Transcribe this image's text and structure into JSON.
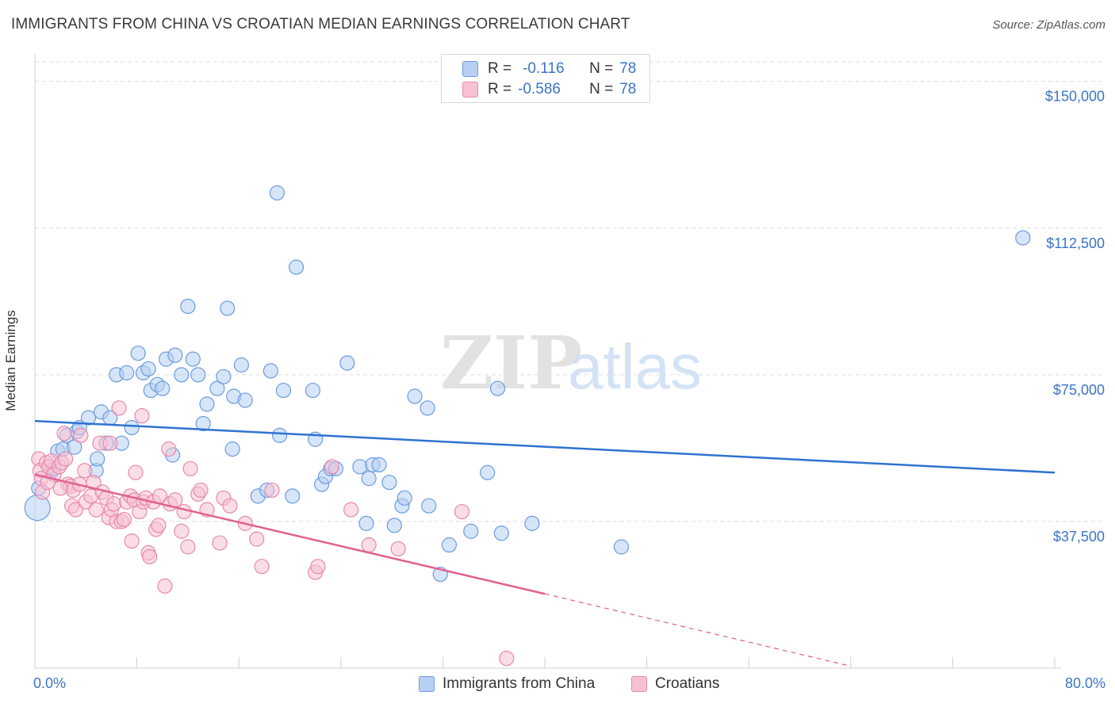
{
  "title": "IMMIGRANTS FROM CHINA VS CROATIAN MEDIAN EARNINGS CORRELATION CHART",
  "source": "Source: ZipAtlas.com",
  "watermark": "ZIPatlas",
  "legend": [
    {
      "r_label": "R =",
      "r_value": "-0.116",
      "n_label": "N =",
      "n_value": "78"
    },
    {
      "r_label": "R =",
      "r_value": "-0.586",
      "n_label": "N =",
      "n_value": "78"
    }
  ],
  "colors": {
    "china_fill": "#b7cff2",
    "china_stroke": "#6a9be0",
    "china_line": "#2f72d0",
    "croatian_fill": "#f7c1d3",
    "croatian_stroke": "#e889a9",
    "croatian_line": "#e0628f",
    "axis_text": "#3b74c8",
    "grid": "#dddddd"
  },
  "chart_data": {
    "type": "scatter",
    "title": "IMMIGRANTS FROM CHINA VS CROATIAN MEDIAN EARNINGS CORRELATION CHART",
    "xlabel": "",
    "ylabel": "Median Earnings",
    "xlim": [
      0,
      80
    ],
    "ylim": [
      0,
      155000
    ],
    "x_tick_labels": [
      "0.0%",
      "80.0%"
    ],
    "y_ticks": [
      37500,
      75000,
      112500,
      150000
    ],
    "y_tick_labels": [
      "$37,500",
      "$75,000",
      "$112,500",
      "$150,000"
    ],
    "grid": true,
    "series": [
      {
        "name": "Immigrants from China",
        "r": -0.116,
        "n": 78,
        "trend": {
          "x": [
            0,
            80
          ],
          "y": [
            63200,
            50000
          ],
          "dashed_from": null
        },
        "points": [
          [
            0.2,
            41000
          ],
          [
            0.3,
            46000
          ],
          [
            1.2,
            50000
          ],
          [
            1.5,
            51000
          ],
          [
            1.8,
            55500
          ],
          [
            2.2,
            56000
          ],
          [
            2.5,
            59500
          ],
          [
            3.1,
            56500
          ],
          [
            3.3,
            60500
          ],
          [
            3.5,
            61500
          ],
          [
            4.2,
            64000
          ],
          [
            4.8,
            50500
          ],
          [
            4.9,
            53500
          ],
          [
            5.2,
            65500
          ],
          [
            5.6,
            57500
          ],
          [
            5.9,
            64000
          ],
          [
            6.8,
            57500
          ],
          [
            7.6,
            61500
          ],
          [
            8.1,
            80500
          ],
          [
            6.4,
            75000
          ],
          [
            7.2,
            75500
          ],
          [
            8.5,
            75500
          ],
          [
            8.9,
            76500
          ],
          [
            9.1,
            71000
          ],
          [
            9.6,
            72500
          ],
          [
            10.0,
            71500
          ],
          [
            10.3,
            79000
          ],
          [
            11.0,
            80000
          ],
          [
            10.8,
            54500
          ],
          [
            11.5,
            75000
          ],
          [
            12.0,
            92500
          ],
          [
            12.4,
            79000
          ],
          [
            12.8,
            75000
          ],
          [
            13.2,
            62500
          ],
          [
            13.5,
            67500
          ],
          [
            14.3,
            71500
          ],
          [
            14.8,
            74500
          ],
          [
            15.1,
            92000
          ],
          [
            15.5,
            56000
          ],
          [
            15.6,
            69500
          ],
          [
            16.2,
            77500
          ],
          [
            16.5,
            68500
          ],
          [
            17.5,
            44000
          ],
          [
            18.2,
            45500
          ],
          [
            18.5,
            76000
          ],
          [
            19.0,
            121500
          ],
          [
            19.2,
            59500
          ],
          [
            19.5,
            71000
          ],
          [
            20.2,
            44000
          ],
          [
            20.5,
            102500
          ],
          [
            21.8,
            71000
          ],
          [
            22.0,
            58500
          ],
          [
            22.5,
            47000
          ],
          [
            22.8,
            49000
          ],
          [
            23.2,
            51000
          ],
          [
            23.6,
            51000
          ],
          [
            24.5,
            78000
          ],
          [
            25.5,
            51500
          ],
          [
            26.0,
            37000
          ],
          [
            26.2,
            48500
          ],
          [
            26.5,
            52000
          ],
          [
            27.0,
            52000
          ],
          [
            27.8,
            47500
          ],
          [
            28.2,
            36500
          ],
          [
            28.8,
            41500
          ],
          [
            29.0,
            43500
          ],
          [
            29.8,
            69500
          ],
          [
            30.8,
            66500
          ],
          [
            30.9,
            41500
          ],
          [
            31.8,
            24000
          ],
          [
            32.5,
            31500
          ],
          [
            34.2,
            35000
          ],
          [
            35.5,
            50000
          ],
          [
            36.3,
            71500
          ],
          [
            36.6,
            34500
          ],
          [
            39.0,
            37000
          ],
          [
            46.0,
            31000
          ],
          [
            77.5,
            110000
          ]
        ]
      },
      {
        "name": "Croatians",
        "r": -0.586,
        "n": 78,
        "trend": {
          "x": [
            0,
            40
          ],
          "y": [
            49500,
            19000
          ],
          "dashed_to": [
            64,
            500
          ]
        },
        "points": [
          [
            0.3,
            53500
          ],
          [
            0.4,
            50500
          ],
          [
            0.5,
            48500
          ],
          [
            0.6,
            45000
          ],
          [
            0.9,
            52500
          ],
          [
            1.1,
            51500
          ],
          [
            1.3,
            53000
          ],
          [
            1.5,
            49500
          ],
          [
            1.9,
            51500
          ],
          [
            2.1,
            52500
          ],
          [
            2.3,
            60000
          ],
          [
            2.4,
            53500
          ],
          [
            2.6,
            47000
          ],
          [
            2.8,
            46500
          ],
          [
            2.9,
            41500
          ],
          [
            3.0,
            45500
          ],
          [
            3.2,
            40500
          ],
          [
            3.5,
            47000
          ],
          [
            3.6,
            59500
          ],
          [
            3.9,
            50500
          ],
          [
            4.0,
            42500
          ],
          [
            4.4,
            44000
          ],
          [
            4.6,
            47500
          ],
          [
            4.8,
            40500
          ],
          [
            5.1,
            57500
          ],
          [
            5.3,
            45000
          ],
          [
            5.6,
            43500
          ],
          [
            5.8,
            38500
          ],
          [
            5.9,
            57500
          ],
          [
            6.0,
            40500
          ],
          [
            6.2,
            42000
          ],
          [
            6.4,
            37500
          ],
          [
            6.6,
            66500
          ],
          [
            6.8,
            37500
          ],
          [
            7.0,
            38000
          ],
          [
            7.2,
            42500
          ],
          [
            7.5,
            44000
          ],
          [
            7.6,
            32500
          ],
          [
            7.8,
            43000
          ],
          [
            7.9,
            50000
          ],
          [
            8.2,
            40000
          ],
          [
            8.4,
            64500
          ],
          [
            8.5,
            42500
          ],
          [
            8.7,
            43500
          ],
          [
            8.9,
            29500
          ],
          [
            9.0,
            28500
          ],
          [
            9.3,
            42500
          ],
          [
            9.5,
            35500
          ],
          [
            9.7,
            36500
          ],
          [
            9.8,
            44000
          ],
          [
            10.2,
            21000
          ],
          [
            10.5,
            56000
          ],
          [
            10.6,
            42000
          ],
          [
            11.0,
            43000
          ],
          [
            11.5,
            35000
          ],
          [
            11.7,
            40000
          ],
          [
            12.0,
            31000
          ],
          [
            12.2,
            51000
          ],
          [
            12.8,
            44500
          ],
          [
            13.0,
            45500
          ],
          [
            13.5,
            40500
          ],
          [
            14.5,
            32000
          ],
          [
            14.8,
            43500
          ],
          [
            15.3,
            41500
          ],
          [
            16.5,
            37000
          ],
          [
            17.4,
            33000
          ],
          [
            17.8,
            26000
          ],
          [
            18.6,
            45500
          ],
          [
            22.0,
            24500
          ],
          [
            22.2,
            26000
          ],
          [
            23.3,
            51500
          ],
          [
            24.8,
            40500
          ],
          [
            26.2,
            31500
          ],
          [
            28.5,
            30500
          ],
          [
            33.5,
            40000
          ],
          [
            37.0,
            2500
          ],
          [
            1.0,
            47500
          ],
          [
            2.0,
            46000
          ]
        ]
      }
    ]
  },
  "axes": {
    "x_min_label": "0.0%",
    "x_max_label": "80.0%",
    "ylabel": "Median Earnings"
  },
  "bottom_legend": [
    {
      "label": "Immigrants from China"
    },
    {
      "label": "Croatians"
    }
  ]
}
